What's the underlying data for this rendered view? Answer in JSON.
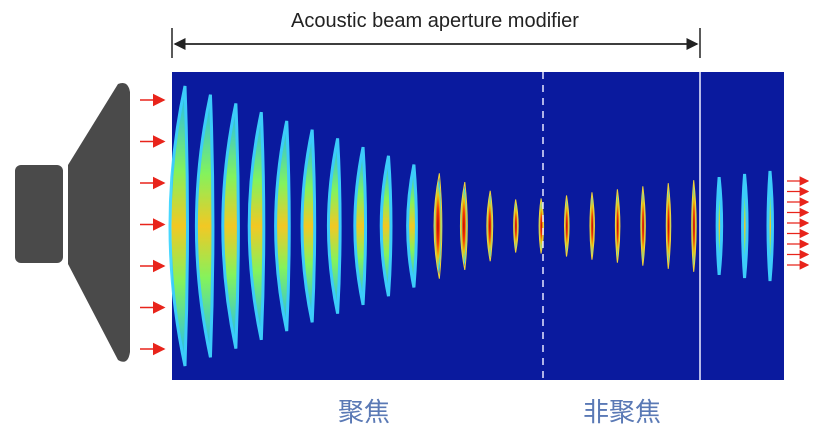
{
  "diagram": {
    "title": "Acoustic beam aperture modifier",
    "zones": [
      {
        "label": "聚焦"
      },
      {
        "label": "非聚焦"
      }
    ],
    "colors": {
      "field_background": "#0a1a9e",
      "speaker": "#4a4a4a",
      "arrow": "#e8241b",
      "zone_label": "#5a79b5"
    },
    "wavefront_count": 24,
    "incoming_arrow_count": 7,
    "outgoing_arrow_count": 9
  }
}
